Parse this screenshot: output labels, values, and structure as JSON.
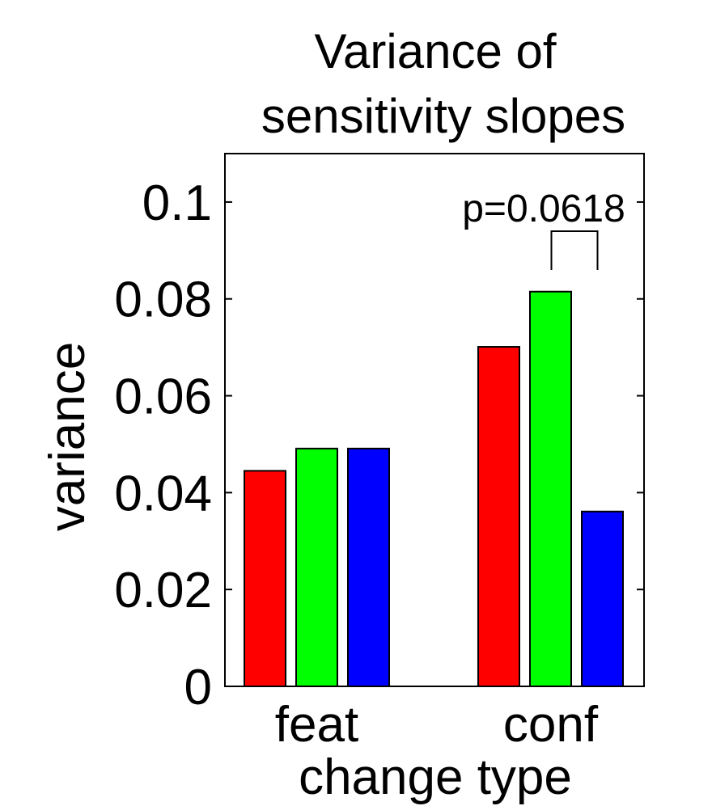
{
  "chart_data": {
    "type": "bar",
    "title_lines": [
      "Variance of",
      "sensitivity slopes"
    ],
    "xlabel": "change type",
    "ylabel": "variance",
    "categories": [
      "feat",
      "conf"
    ],
    "series": [
      {
        "color": "#ff0000",
        "values": [
          0.0445,
          0.0701
        ]
      },
      {
        "color": "#00ff00",
        "values": [
          0.0491,
          0.0815
        ]
      },
      {
        "color": "#0000ff",
        "values": [
          0.0491,
          0.0361
        ]
      }
    ],
    "ylim": [
      0,
      0.11
    ],
    "yticks": [
      0,
      0.02,
      0.04,
      0.06,
      0.08,
      0.1
    ],
    "ytick_labels": [
      "0",
      "0.02",
      "0.04",
      "0.06",
      "0.08",
      "0.1"
    ],
    "grid": false,
    "legend": "none",
    "annotations": [
      {
        "text": "p=0.0618",
        "category": "conf",
        "between_series": [
          1,
          2
        ]
      }
    ]
  }
}
